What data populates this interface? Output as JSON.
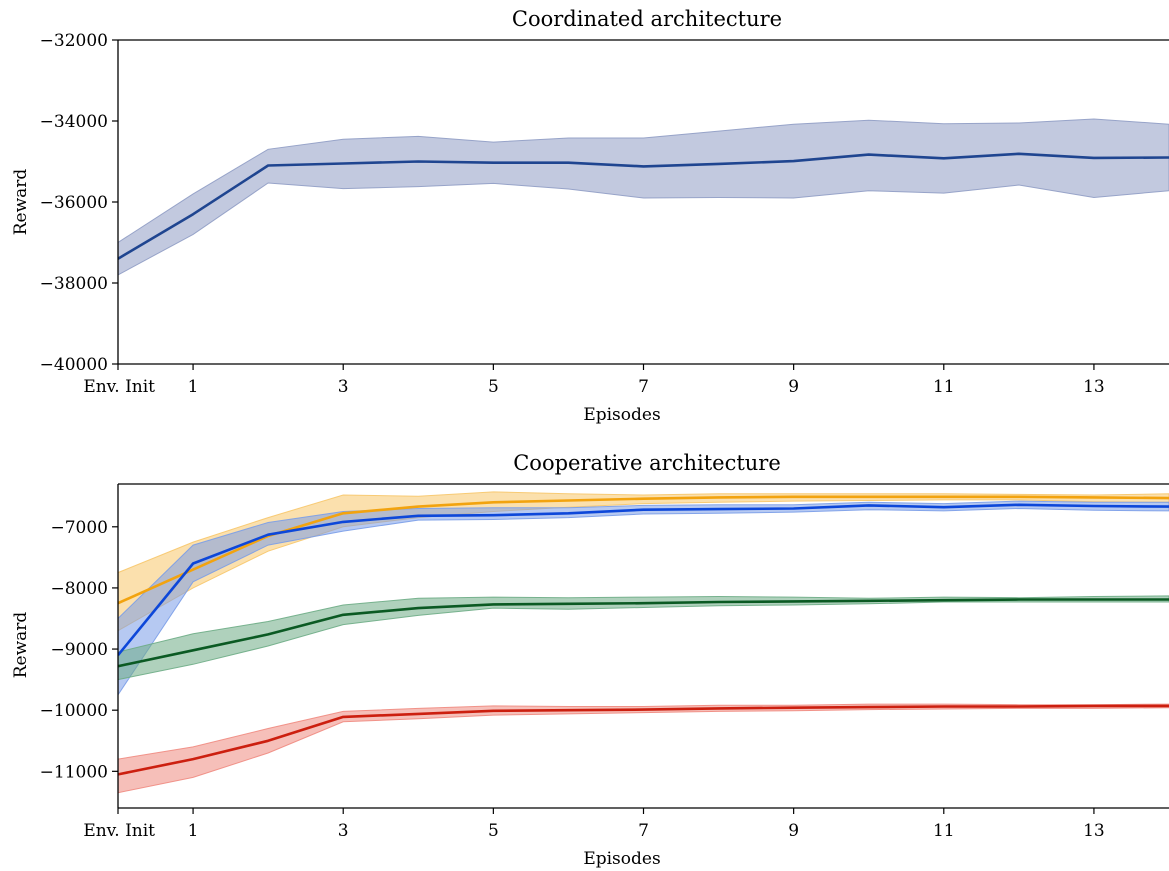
{
  "chart_data": [
    {
      "type": "line",
      "title": "Coordinated architecture",
      "xlabel": "Episodes",
      "ylabel": "Reward",
      "xlim": [
        0,
        14
      ],
      "ylim": [
        -40000,
        -32000
      ],
      "x_ticks": [
        0,
        1,
        3,
        5,
        7,
        9,
        11,
        13
      ],
      "x_tick_labels": [
        "Env. Init",
        "1",
        "3",
        "5",
        "7",
        "9",
        "11",
        "13"
      ],
      "y_ticks": [
        -40000,
        -38000,
        -36000,
        -34000,
        -32000
      ],
      "y_tick_labels": [
        "-40000",
        "-38000",
        "-36000",
        "-34000",
        "-32000"
      ],
      "x": [
        0,
        1,
        2,
        3,
        4,
        5,
        6,
        7,
        8,
        9,
        10,
        11,
        12,
        13,
        14
      ],
      "series": [
        {
          "color": "#1f4590",
          "band_color": "#8f9cc4",
          "values": [
            -37400,
            -36300,
            -35100,
            -35050,
            -35000,
            -35030,
            -35030,
            -35120,
            -35060,
            -34990,
            -34830,
            -34920,
            -34810,
            -34910,
            -34900
          ],
          "upper": [
            -37000,
            -35800,
            -34700,
            -34450,
            -34380,
            -34520,
            -34420,
            -34420,
            -34250,
            -34080,
            -33980,
            -34070,
            -34050,
            -33950,
            -34080
          ],
          "lower": [
            -37800,
            -36800,
            -35530,
            -35670,
            -35620,
            -35540,
            -35680,
            -35900,
            -35890,
            -35900,
            -35720,
            -35780,
            -35580,
            -35890,
            -35720
          ]
        }
      ],
      "grid": false,
      "legend": "none"
    },
    {
      "type": "line",
      "title": "Cooperative architecture",
      "xlabel": "Episodes",
      "ylabel": "Reward",
      "xlim": [
        0,
        14
      ],
      "ylim": [
        -11600,
        -6300
      ],
      "x_ticks": [
        0,
        1,
        3,
        5,
        7,
        9,
        11,
        13
      ],
      "x_tick_labels": [
        "Env. Init",
        "1",
        "3",
        "5",
        "7",
        "9",
        "11",
        "13"
      ],
      "y_ticks": [
        -11000,
        -10000,
        -9000,
        -8000,
        -7000
      ],
      "y_tick_labels": [
        "-11000",
        "-10000",
        "-9000",
        "-8000",
        "-7000"
      ],
      "x": [
        0,
        1,
        2,
        3,
        4,
        5,
        6,
        7,
        8,
        9,
        10,
        11,
        12,
        13,
        14
      ],
      "series": [
        {
          "color": "#f2a30f",
          "band_color": "#f7c66a",
          "values": [
            -8250,
            -7700,
            -7150,
            -6780,
            -6670,
            -6600,
            -6570,
            -6540,
            -6520,
            -6510,
            -6510,
            -6510,
            -6510,
            -6520,
            -6530
          ],
          "upper": [
            -7750,
            -7250,
            -6850,
            -6480,
            -6500,
            -6430,
            -6460,
            -6480,
            -6460,
            -6460,
            -6460,
            -6460,
            -6470,
            -6480,
            -6460
          ],
          "lower": [
            -8700,
            -8000,
            -7400,
            -7000,
            -6850,
            -6750,
            -6680,
            -6620,
            -6600,
            -6580,
            -6570,
            -6560,
            -6560,
            -6590,
            -6600
          ]
        },
        {
          "color": "#0d47d9",
          "band_color": "#7a9de8",
          "values": [
            -9100,
            -7600,
            -7130,
            -6920,
            -6820,
            -6810,
            -6780,
            -6720,
            -6710,
            -6700,
            -6650,
            -6680,
            -6640,
            -6660,
            -6670
          ],
          "upper": [
            -8500,
            -7300,
            -6930,
            -6750,
            -6700,
            -6690,
            -6690,
            -6650,
            -6640,
            -6640,
            -6600,
            -6620,
            -6580,
            -6600,
            -6600
          ],
          "lower": [
            -9750,
            -7900,
            -7300,
            -7070,
            -6890,
            -6880,
            -6850,
            -6790,
            -6780,
            -6760,
            -6720,
            -6740,
            -6700,
            -6730,
            -6740
          ]
        },
        {
          "color": "#0b5a23",
          "band_color": "#6dac85",
          "values": [
            -9280,
            -9020,
            -8760,
            -8440,
            -8330,
            -8270,
            -8260,
            -8250,
            -8230,
            -8220,
            -8210,
            -8200,
            -8190,
            -8190,
            -8190
          ],
          "upper": [
            -9050,
            -8750,
            -8550,
            -8280,
            -8170,
            -8150,
            -8160,
            -8150,
            -8140,
            -8150,
            -8170,
            -8150,
            -8160,
            -8140,
            -8130
          ],
          "lower": [
            -9500,
            -9250,
            -8950,
            -8600,
            -8450,
            -8330,
            -8350,
            -8320,
            -8290,
            -8280,
            -8260,
            -8230,
            -8230,
            -8230,
            -8230
          ]
        },
        {
          "color": "#cc1f0f",
          "band_color": "#ef8a80",
          "values": [
            -11050,
            -10800,
            -10500,
            -10110,
            -10060,
            -10010,
            -10000,
            -9990,
            -9970,
            -9960,
            -9950,
            -9940,
            -9940,
            -9930,
            -9930
          ],
          "upper": [
            -10800,
            -10600,
            -10300,
            -10020,
            -9970,
            -9930,
            -9940,
            -9940,
            -9920,
            -9920,
            -9900,
            -9900,
            -9910,
            -9910,
            -9900
          ],
          "lower": [
            -11350,
            -11100,
            -10700,
            -10190,
            -10140,
            -10080,
            -10060,
            -10040,
            -10020,
            -10010,
            -9990,
            -9980,
            -9970,
            -9970,
            -9960
          ]
        }
      ],
      "grid": false,
      "legend": "none"
    }
  ]
}
